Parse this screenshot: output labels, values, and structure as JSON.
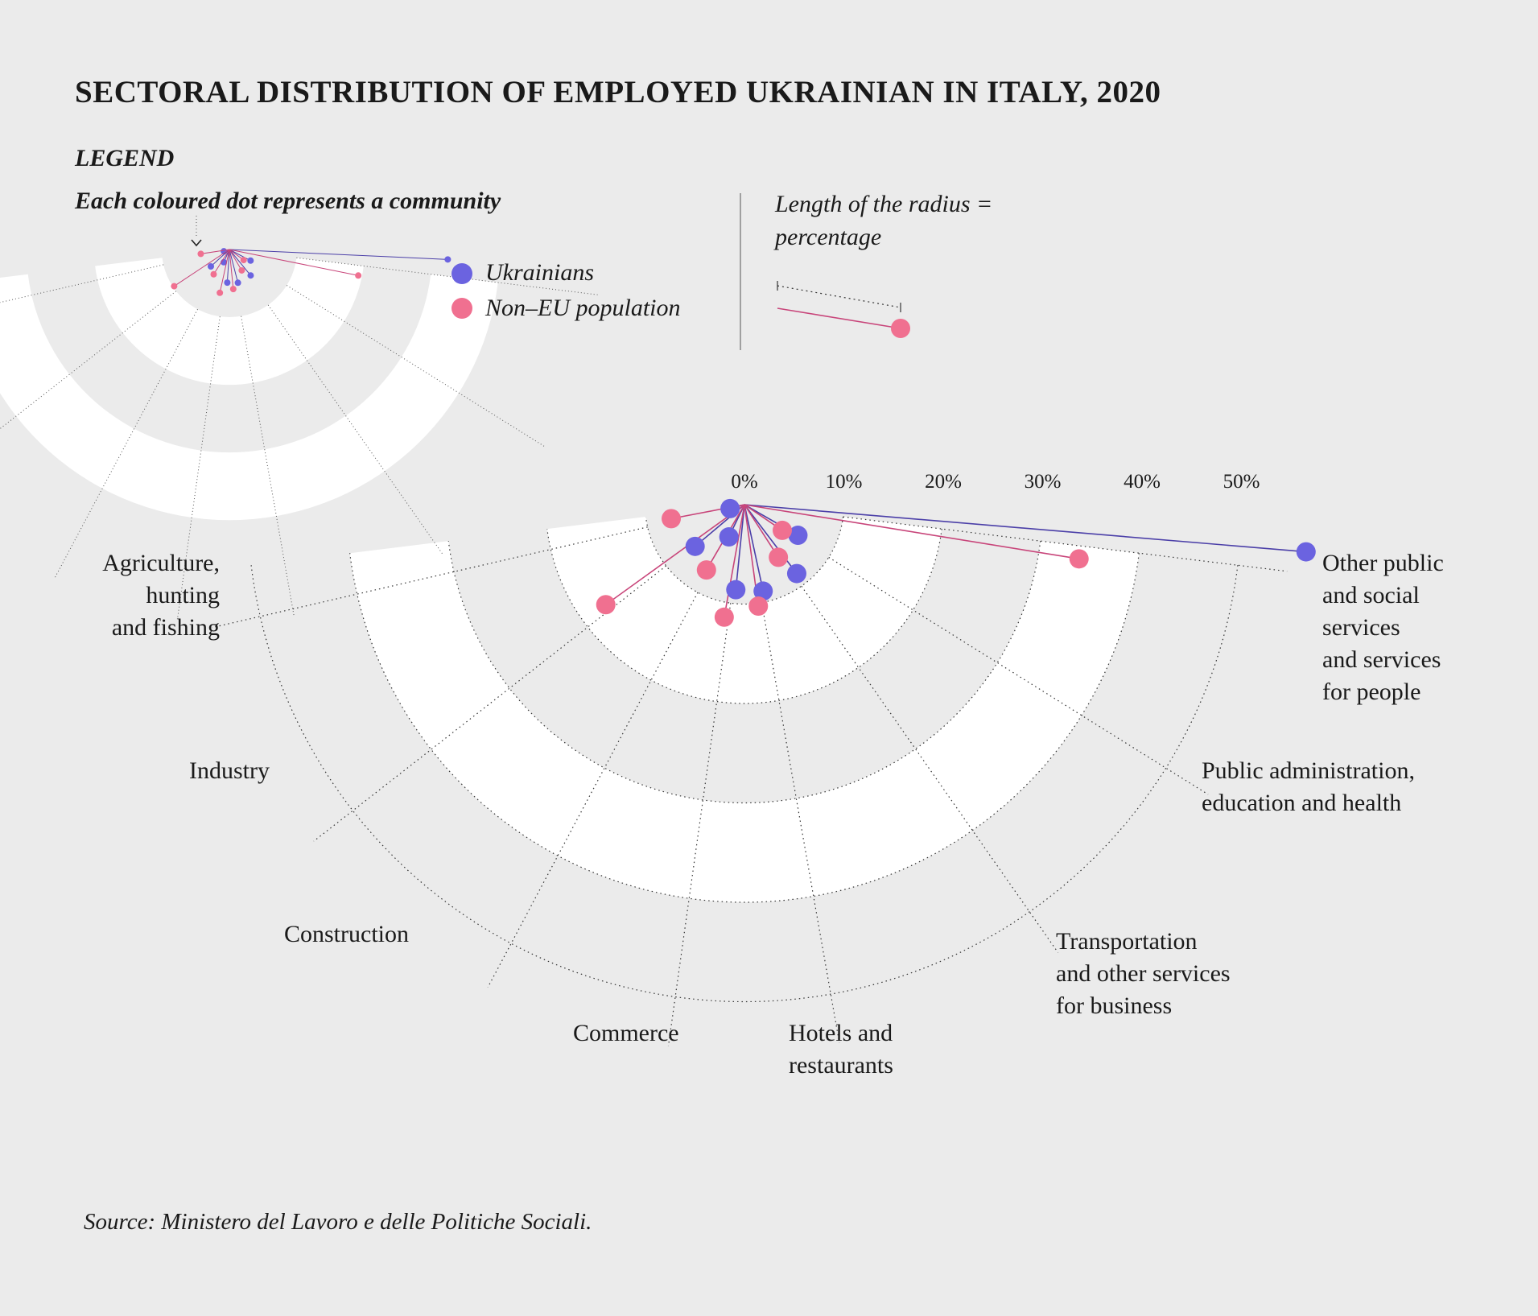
{
  "title": "SECTORAL DISTRIBUTION OF EMPLOYED UKRAINIAN IN ITALY, 2020",
  "legend": {
    "heading": "LEGEND",
    "subheading": "Each coloured dot represents a community",
    "ukrainians_label": "Ukrainians",
    "non_eu_label": "Non–EU population",
    "radius_text": "Length of the radius = percentage"
  },
  "source": "Source: Ministero del Lavoro e delle Politiche Sociali.",
  "colors": {
    "ukrainians": "#6b63e0",
    "non_eu": "#f07090",
    "background": "#ebebeb",
    "band": "#ffffff"
  },
  "chart_data": {
    "type": "radial-lollipop",
    "title": "SECTORAL DISTRIBUTION OF EMPLOYED UKRAINIAN IN ITALY, 2020",
    "radial_ticks": [
      "0%",
      "10%",
      "20%",
      "30%",
      "40%",
      "50%"
    ],
    "radial_range": [
      0,
      50
    ],
    "categories": [
      "Agriculture,\nhunting\nand fishing",
      "Industry",
      "Construction",
      "Commerce",
      "Hotels and\nrestaurants",
      "Transportation\nand other services\nfor business",
      "Public administration,\neducation and health",
      "Other public\nand social\nservices\nand services\nfor people"
    ],
    "series": [
      {
        "name": "Ukrainians",
        "values": [
          1.5,
          6.5,
          3.6,
          8.6,
          8.9,
          8.7,
          6.2,
          56.7
        ]
      },
      {
        "name": "Non–EU population",
        "values": [
          7.5,
          17.2,
          7.6,
          11.5,
          10.3,
          6.3,
          4.6,
          34.1
        ]
      }
    ]
  }
}
